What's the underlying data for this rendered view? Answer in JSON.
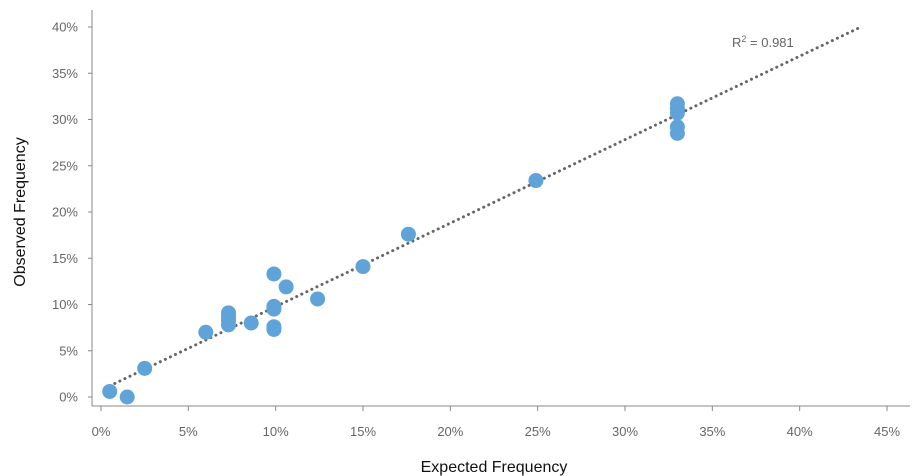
{
  "chart_data": {
    "type": "scatter",
    "xlabel": "Expected Frequency",
    "ylabel": "Observed Frequency",
    "xlim": [
      0,
      45
    ],
    "ylim": [
      0,
      40
    ],
    "x_ticks": [
      "0%",
      "5%",
      "10%",
      "15%",
      "20%",
      "25%",
      "30%",
      "35%",
      "40%",
      "45%"
    ],
    "y_ticks": [
      "0%",
      "5%",
      "10%",
      "15%",
      "20%",
      "25%",
      "30%",
      "35%",
      "40%"
    ],
    "grid": false,
    "point_color": "#5fa3d9",
    "trendline_color": "#666666",
    "trendline": {
      "style": "dotted",
      "x_start": 0.5,
      "y_start": 1.2,
      "x_end": 43.5,
      "y_end": 40.0
    },
    "annotation": {
      "base": "R",
      "sup": "2",
      "rest": " = 0.981"
    },
    "points": [
      {
        "x": 0.5,
        "y": 0.6
      },
      {
        "x": 1.5,
        "y": 0.0
      },
      {
        "x": 2.5,
        "y": 3.1
      },
      {
        "x": 6.0,
        "y": 7.0
      },
      {
        "x": 7.3,
        "y": 7.8
      },
      {
        "x": 7.3,
        "y": 8.3
      },
      {
        "x": 7.3,
        "y": 8.7
      },
      {
        "x": 7.3,
        "y": 9.1
      },
      {
        "x": 8.6,
        "y": 8.0
      },
      {
        "x": 9.9,
        "y": 7.3
      },
      {
        "x": 9.9,
        "y": 7.6
      },
      {
        "x": 9.9,
        "y": 9.5
      },
      {
        "x": 9.9,
        "y": 9.8
      },
      {
        "x": 9.9,
        "y": 13.3
      },
      {
        "x": 10.6,
        "y": 11.9
      },
      {
        "x": 12.4,
        "y": 10.6
      },
      {
        "x": 15.0,
        "y": 14.1
      },
      {
        "x": 17.6,
        "y": 17.6
      },
      {
        "x": 24.9,
        "y": 23.4
      },
      {
        "x": 33.0,
        "y": 28.5
      },
      {
        "x": 33.0,
        "y": 29.2
      },
      {
        "x": 33.0,
        "y": 30.7
      },
      {
        "x": 33.0,
        "y": 31.2
      },
      {
        "x": 33.0,
        "y": 31.7
      }
    ]
  }
}
